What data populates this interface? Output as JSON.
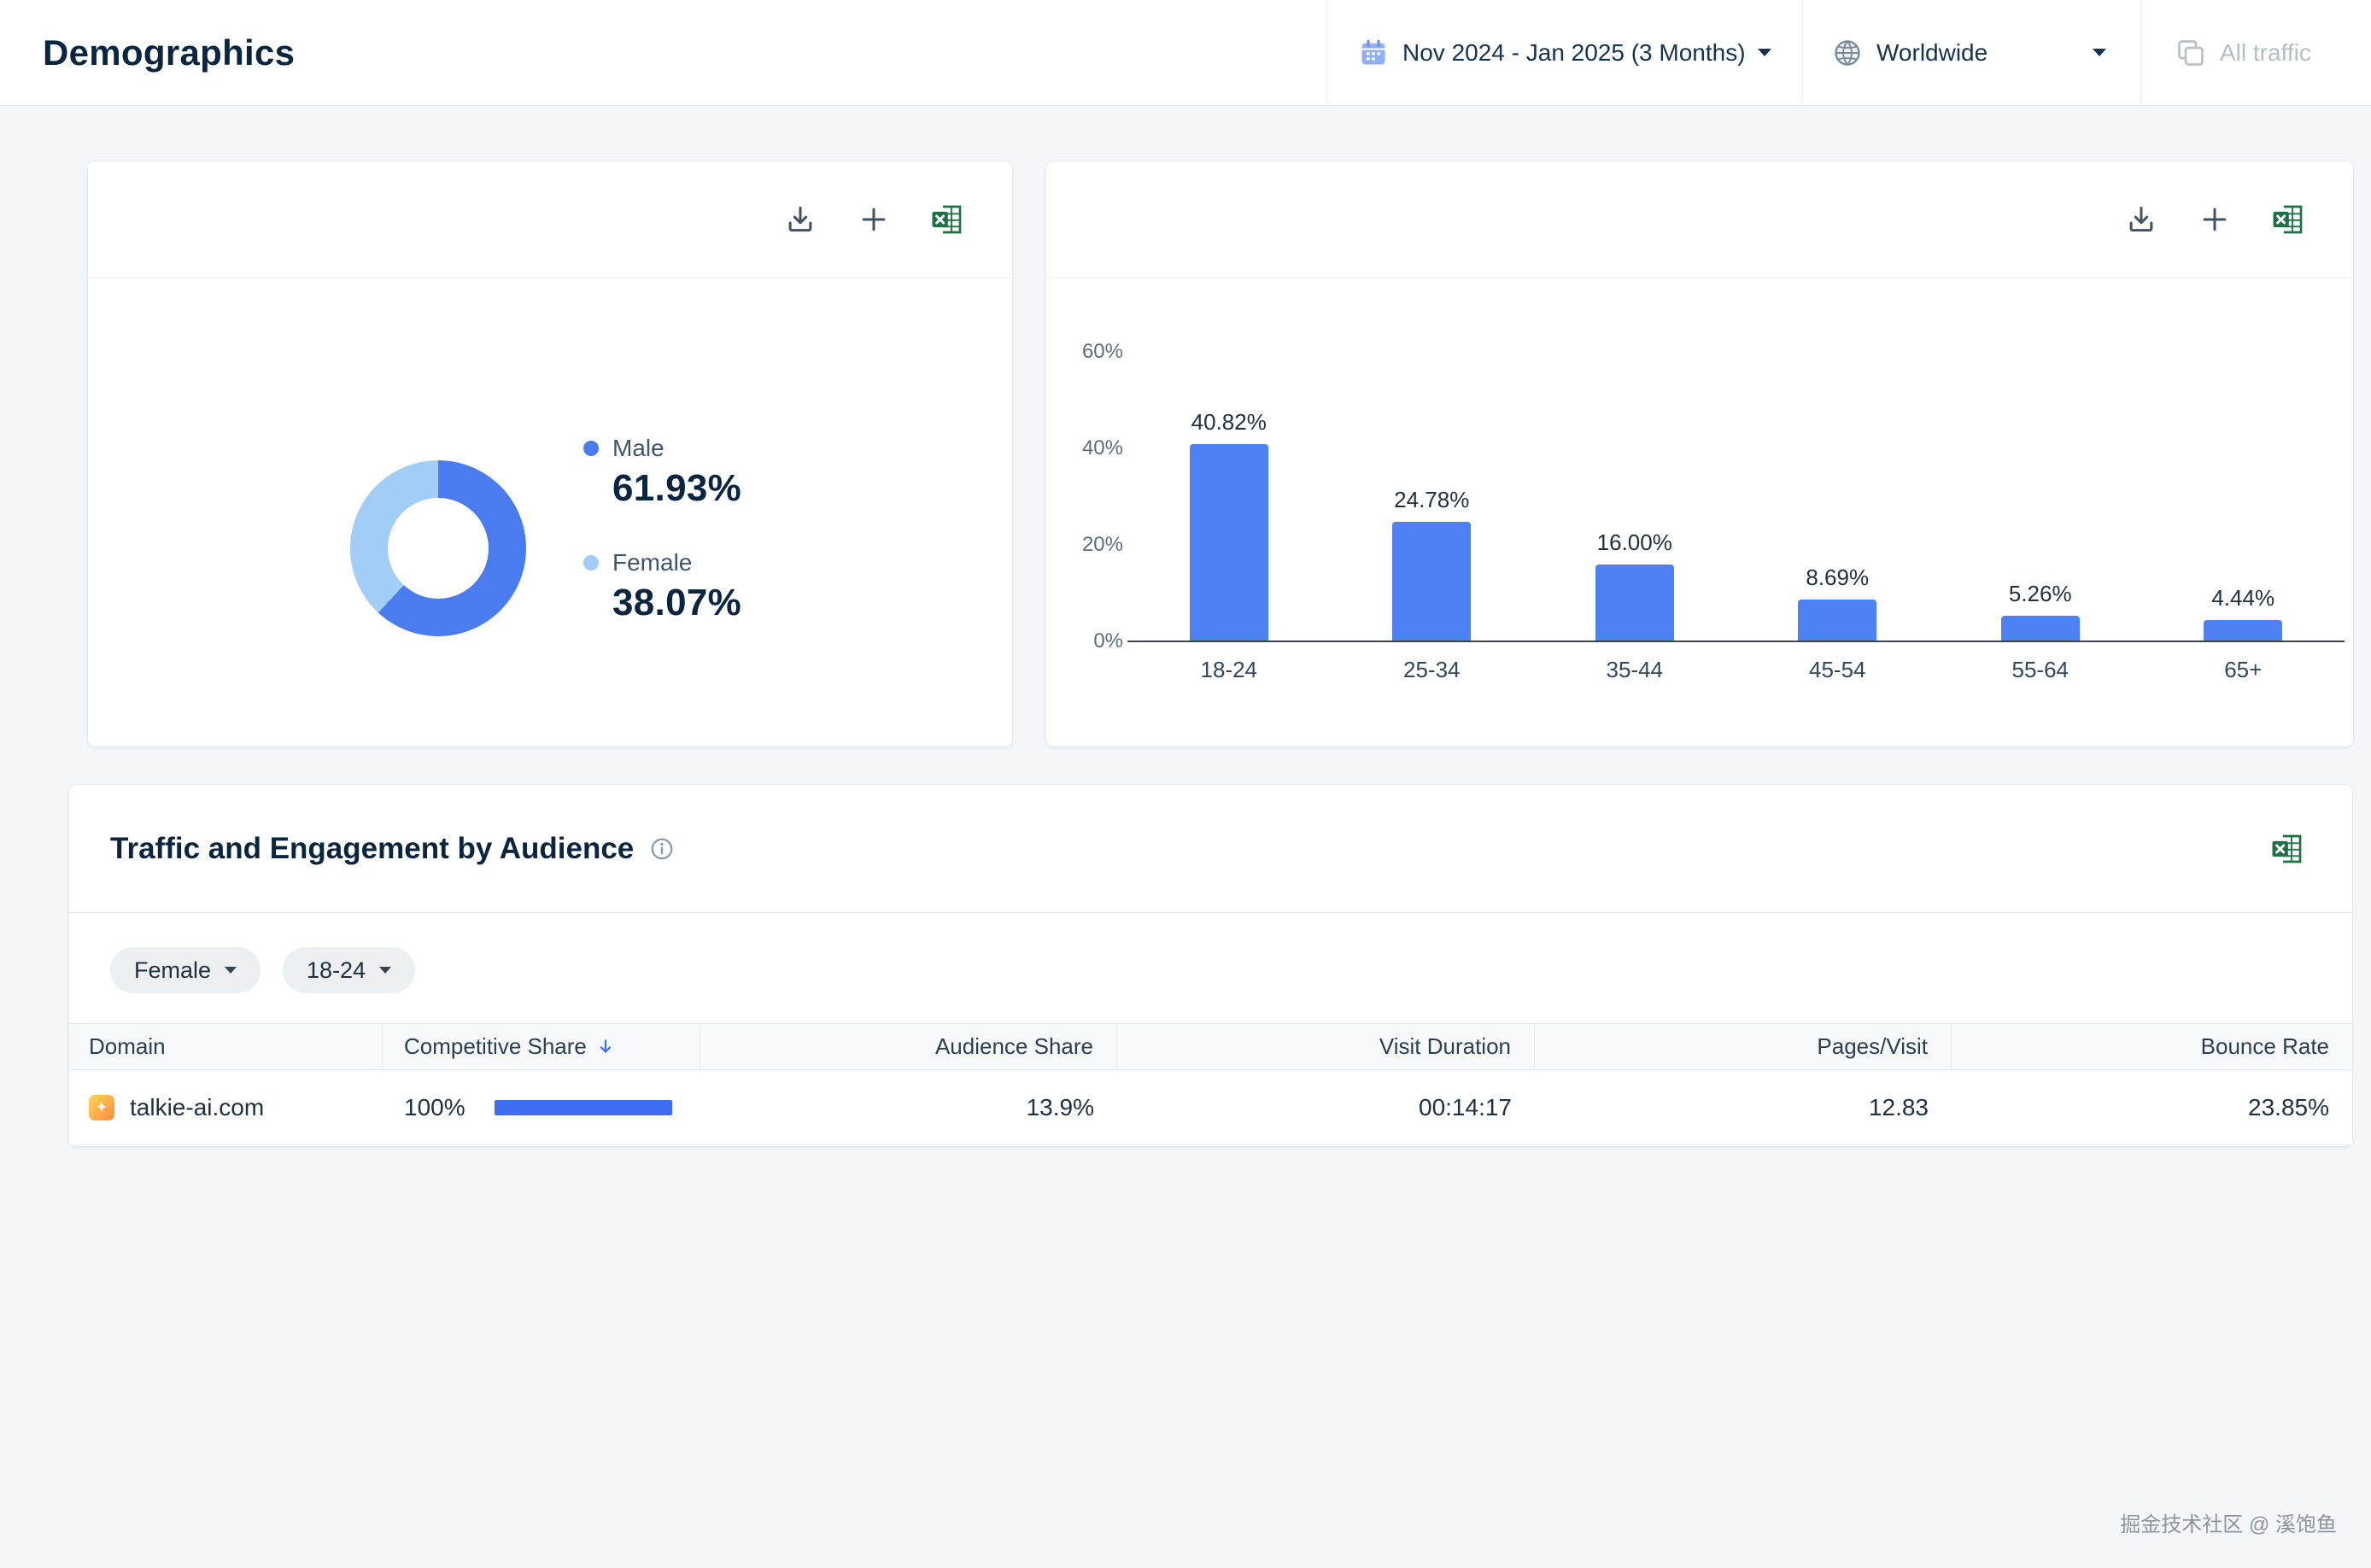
{
  "header": {
    "title": "Demographics",
    "date_range": "Nov 2024 - Jan 2025 (3 Months)",
    "region": "Worldwide",
    "traffic": "All traffic"
  },
  "icons": {
    "calendar-icon": "calendar",
    "globe-icon": "globe",
    "all-traffic-icon": "overlapping-squares",
    "download-icon": "arrow-down-tray",
    "add-icon": "plus",
    "excel-export-icon": "xls-sheet",
    "info-icon": "circle-i",
    "sort-desc-icon": "blue-arrow-down",
    "chevron-down-icon": "triangle-down",
    "site-favicon": "sparkle"
  },
  "chart_data": [
    {
      "type": "pie",
      "name": "gender-distribution",
      "donut": true,
      "labels": [
        "Male",
        "Female"
      ],
      "values": [
        61.93,
        38.07
      ],
      "value_labels": [
        "61.93%",
        "38.07%"
      ],
      "colors": [
        "#4a7cf0",
        "#a2cdf6"
      ],
      "legend_position": "right"
    },
    {
      "type": "bar",
      "name": "age-distribution",
      "categories": [
        "18-24",
        "25-34",
        "35-44",
        "45-54",
        "55-64",
        "65+"
      ],
      "values": [
        40.82,
        24.78,
        16.0,
        8.69,
        5.26,
        4.44
      ],
      "value_labels": [
        "40.82%",
        "24.78%",
        "16.00%",
        "8.69%",
        "5.26%",
        "4.44%"
      ],
      "ylim": [
        0,
        60
      ],
      "ytick_labels": [
        "0%",
        "20%",
        "40%",
        "60%"
      ],
      "bar_color": "#4e82f4",
      "grid": false
    }
  ],
  "audience_card": {
    "title": "Traffic and Engagement by Audience",
    "filters": [
      {
        "label": "Female"
      },
      {
        "label": "18-24"
      }
    ],
    "table": {
      "columns": [
        "Domain",
        "Competitive Share",
        "Audience Share",
        "Visit Duration",
        "Pages/Visit",
        "Bounce Rate"
      ],
      "sorted_column": "Competitive Share",
      "rows": [
        {
          "domain": "talkie-ai.com",
          "competitive_share": "100%",
          "competitive_share_pct": 100,
          "audience_share": "13.9%",
          "visit_duration": "00:14:17",
          "pages_per_visit": "12.83",
          "bounce_rate": "23.85%"
        }
      ]
    }
  },
  "share_bar_color": "#3e6df0",
  "watermark": "掘金技术社区 @ 溪饱鱼"
}
